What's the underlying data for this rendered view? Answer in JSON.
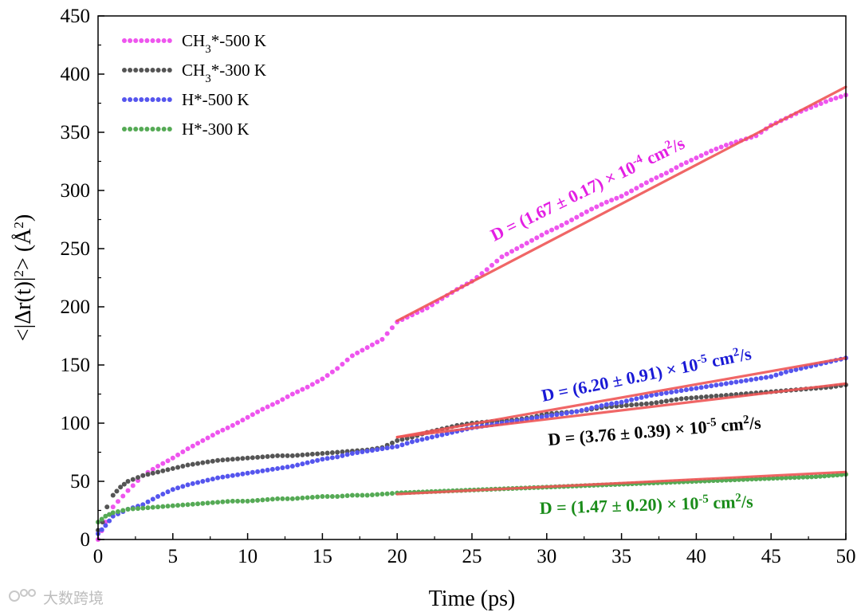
{
  "chart_data": {
    "type": "scatter",
    "xlabel": "Time (ps)",
    "ylabel_parts": [
      "<|Δr(t)|",
      "2",
      "> (Å",
      "2",
      ")"
    ],
    "xlim": [
      0,
      50
    ],
    "ylim": [
      0,
      450
    ],
    "xticks": [
      0,
      5,
      10,
      15,
      20,
      25,
      30,
      35,
      40,
      45,
      50
    ],
    "yticks": [
      0,
      50,
      100,
      150,
      200,
      250,
      300,
      350,
      400,
      450
    ],
    "grid": false,
    "legend_position": "top-left",
    "series": [
      {
        "name": "CH3*-500 K",
        "label_parts": [
          "CH",
          "3",
          "*-500 K"
        ],
        "color": "#ee55ee",
        "points": [
          [
            0,
            0
          ],
          [
            0.5,
            15
          ],
          [
            1,
            28
          ],
          [
            2,
            42
          ],
          [
            3,
            55
          ],
          [
            4,
            63
          ],
          [
            5,
            70
          ],
          [
            6,
            78
          ],
          [
            7,
            85
          ],
          [
            8,
            92
          ],
          [
            9,
            98
          ],
          [
            10,
            105
          ],
          [
            11,
            112
          ],
          [
            12,
            118
          ],
          [
            13,
            125
          ],
          [
            14,
            131
          ],
          [
            15,
            138
          ],
          [
            16,
            147
          ],
          [
            17,
            158
          ],
          [
            18,
            165
          ],
          [
            19,
            172
          ],
          [
            20,
            187
          ],
          [
            21,
            193
          ],
          [
            22,
            199
          ],
          [
            23,
            207
          ],
          [
            24,
            215
          ],
          [
            25,
            222
          ],
          [
            26,
            232
          ],
          [
            27,
            243
          ],
          [
            28,
            250
          ],
          [
            29,
            257
          ],
          [
            30,
            264
          ],
          [
            31,
            270
          ],
          [
            32,
            277
          ],
          [
            33,
            284
          ],
          [
            34,
            290
          ],
          [
            35,
            295
          ],
          [
            36,
            302
          ],
          [
            37,
            309
          ],
          [
            38,
            315
          ],
          [
            39,
            322
          ],
          [
            40,
            328
          ],
          [
            41,
            334
          ],
          [
            42,
            339
          ],
          [
            43,
            343
          ],
          [
            44,
            347
          ],
          [
            45,
            356
          ],
          [
            46,
            362
          ],
          [
            47,
            368
          ],
          [
            48,
            373
          ],
          [
            49,
            378
          ],
          [
            50,
            382
          ]
        ]
      },
      {
        "name": "CH3*-300 K",
        "label_parts": [
          "CH",
          "3",
          "*-300 K"
        ],
        "color": "#555555",
        "points": [
          [
            0,
            8
          ],
          [
            0.3,
            15
          ],
          [
            0.6,
            28
          ],
          [
            1,
            38
          ],
          [
            1.5,
            45
          ],
          [
            2,
            50
          ],
          [
            3,
            55
          ],
          [
            4,
            58
          ],
          [
            5,
            61
          ],
          [
            6,
            64
          ],
          [
            7,
            66
          ],
          [
            8,
            68
          ],
          [
            9,
            69
          ],
          [
            10,
            70
          ],
          [
            11,
            71
          ],
          [
            12,
            72
          ],
          [
            13,
            72
          ],
          [
            14,
            73
          ],
          [
            15,
            74
          ],
          [
            16,
            75
          ],
          [
            17,
            76
          ],
          [
            18,
            77
          ],
          [
            19,
            79
          ],
          [
            20,
            85
          ],
          [
            21,
            88
          ],
          [
            22,
            92
          ],
          [
            23,
            95
          ],
          [
            24,
            98
          ],
          [
            25,
            100
          ],
          [
            26,
            101
          ],
          [
            27,
            102
          ],
          [
            28,
            103
          ],
          [
            29,
            105
          ],
          [
            30,
            108
          ],
          [
            31,
            109
          ],
          [
            32,
            110
          ],
          [
            33,
            112
          ],
          [
            34,
            114
          ],
          [
            35,
            115
          ],
          [
            36,
            116
          ],
          [
            37,
            117
          ],
          [
            38,
            119
          ],
          [
            39,
            121
          ],
          [
            40,
            122
          ],
          [
            41,
            123
          ],
          [
            42,
            124
          ],
          [
            43,
            125
          ],
          [
            44,
            126
          ],
          [
            45,
            127
          ],
          [
            46,
            128
          ],
          [
            47,
            129
          ],
          [
            48,
            130
          ],
          [
            49,
            131
          ],
          [
            50,
            133
          ]
        ]
      },
      {
        "name": "H*-500 K",
        "label_parts": [
          "H*-500 K"
        ],
        "color": "#5555ee",
        "points": [
          [
            0,
            5
          ],
          [
            0.5,
            12
          ],
          [
            1,
            20
          ],
          [
            2,
            26
          ],
          [
            3,
            30
          ],
          [
            4,
            37
          ],
          [
            5,
            43
          ],
          [
            6,
            47
          ],
          [
            7,
            50
          ],
          [
            8,
            53
          ],
          [
            9,
            55
          ],
          [
            10,
            57
          ],
          [
            11,
            59
          ],
          [
            12,
            61
          ],
          [
            13,
            63
          ],
          [
            14,
            66
          ],
          [
            15,
            69
          ],
          [
            16,
            71
          ],
          [
            17,
            74
          ],
          [
            18,
            76
          ],
          [
            19,
            78
          ],
          [
            20,
            80
          ],
          [
            21,
            84
          ],
          [
            22,
            87
          ],
          [
            23,
            90
          ],
          [
            24,
            93
          ],
          [
            25,
            96
          ],
          [
            26,
            98
          ],
          [
            27,
            100
          ],
          [
            28,
            102
          ],
          [
            29,
            104
          ],
          [
            30,
            106
          ],
          [
            31,
            108
          ],
          [
            32,
            110
          ],
          [
            33,
            113
          ],
          [
            34,
            116
          ],
          [
            35,
            118
          ],
          [
            36,
            121
          ],
          [
            37,
            124
          ],
          [
            38,
            126
          ],
          [
            39,
            128
          ],
          [
            40,
            130
          ],
          [
            41,
            132
          ],
          [
            42,
            134
          ],
          [
            43,
            136
          ],
          [
            44,
            138
          ],
          [
            45,
            140
          ],
          [
            46,
            144
          ],
          [
            47,
            147
          ],
          [
            48,
            150
          ],
          [
            49,
            153
          ],
          [
            50,
            156
          ]
        ]
      },
      {
        "name": "H*-300 K",
        "label_parts": [
          "H*-300 K"
        ],
        "color": "#55aa55",
        "points": [
          [
            0,
            15
          ],
          [
            0.5,
            20
          ],
          [
            1,
            23
          ],
          [
            2,
            26
          ],
          [
            3,
            27
          ],
          [
            4,
            28
          ],
          [
            5,
            29
          ],
          [
            6,
            30
          ],
          [
            7,
            31
          ],
          [
            8,
            32
          ],
          [
            9,
            33
          ],
          [
            10,
            33
          ],
          [
            11,
            34
          ],
          [
            12,
            35
          ],
          [
            13,
            35
          ],
          [
            14,
            36
          ],
          [
            15,
            37
          ],
          [
            16,
            37
          ],
          [
            17,
            38
          ],
          [
            18,
            38
          ],
          [
            19,
            39
          ],
          [
            20,
            40
          ],
          [
            22,
            41
          ],
          [
            24,
            42
          ],
          [
            26,
            43
          ],
          [
            28,
            44
          ],
          [
            30,
            45
          ],
          [
            32,
            46
          ],
          [
            34,
            47
          ],
          [
            36,
            48
          ],
          [
            38,
            49
          ],
          [
            40,
            50
          ],
          [
            42,
            51
          ],
          [
            44,
            52
          ],
          [
            46,
            53
          ],
          [
            48,
            54
          ],
          [
            50,
            56
          ]
        ]
      }
    ],
    "fit_lines": [
      {
        "series": "CH3*-500 K",
        "x": [
          20,
          50
        ],
        "y": [
          188,
          389
        ],
        "color": "#ee5555"
      },
      {
        "series": "H*-500 K",
        "x": [
          20,
          50
        ],
        "y": [
          88,
          156
        ],
        "color": "#ee5555"
      },
      {
        "series": "CH3*-300 K",
        "x": [
          20,
          50
        ],
        "y": [
          88,
          134
        ],
        "color": "#ee5555"
      },
      {
        "series": "H*-300 K",
        "x": [
          20,
          50
        ],
        "y": [
          39,
          58
        ],
        "color": "#ee5555"
      }
    ],
    "annotations": [
      {
        "series": "CH3*-500 K",
        "color": "#e31fe3",
        "main": "D = (1.67 ± 0.17) × 10",
        "exp": "-4",
        "unit": " cm",
        "unit_exp": "2",
        "suffix": "/s"
      },
      {
        "series": "H*-500 K",
        "color": "#1a1ad6",
        "main": "D = (6.20 ± 0.91) × 10",
        "exp": "-5",
        "unit": " cm",
        "unit_exp": "2",
        "suffix": "/s"
      },
      {
        "series": "CH3*-300 K",
        "color": "#000000",
        "main": "D = (3.76 ± 0.39) × 10",
        "exp": "-5",
        "unit": " cm",
        "unit_exp": "2",
        "suffix": "/s"
      },
      {
        "series": "H*-300 K",
        "color": "#1a8c1a",
        "main": "D = (1.47 ± 0.20) × 10",
        "exp": "-5",
        "unit": " cm",
        "unit_exp": "2",
        "suffix": "/s"
      }
    ]
  },
  "watermark": "大数跨境"
}
